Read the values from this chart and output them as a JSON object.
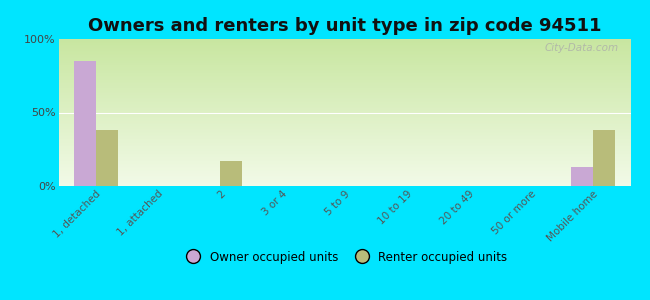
{
  "title": "Owners and renters by unit type in zip code 94511",
  "categories": [
    "1, detached",
    "1, attached",
    "2",
    "3 or 4",
    "5 to 9",
    "10 to 19",
    "20 to 49",
    "50 or more",
    "Mobile home"
  ],
  "owner_values": [
    85,
    0,
    0,
    0,
    0,
    0,
    0,
    0,
    13
  ],
  "renter_values": [
    38,
    0,
    17,
    0,
    0,
    0,
    0,
    0,
    38
  ],
  "owner_color": "#c9a8d4",
  "renter_color": "#b8bc7a",
  "background_color": "#00e5ff",
  "grad_top": "#c8e6a0",
  "grad_bottom": "#f2fae8",
  "ylabel_ticks": [
    "0%",
    "50%",
    "100%"
  ],
  "ytick_vals": [
    0,
    50,
    100
  ],
  "bar_width": 0.35,
  "title_fontsize": 13,
  "watermark": "City-Data.com"
}
